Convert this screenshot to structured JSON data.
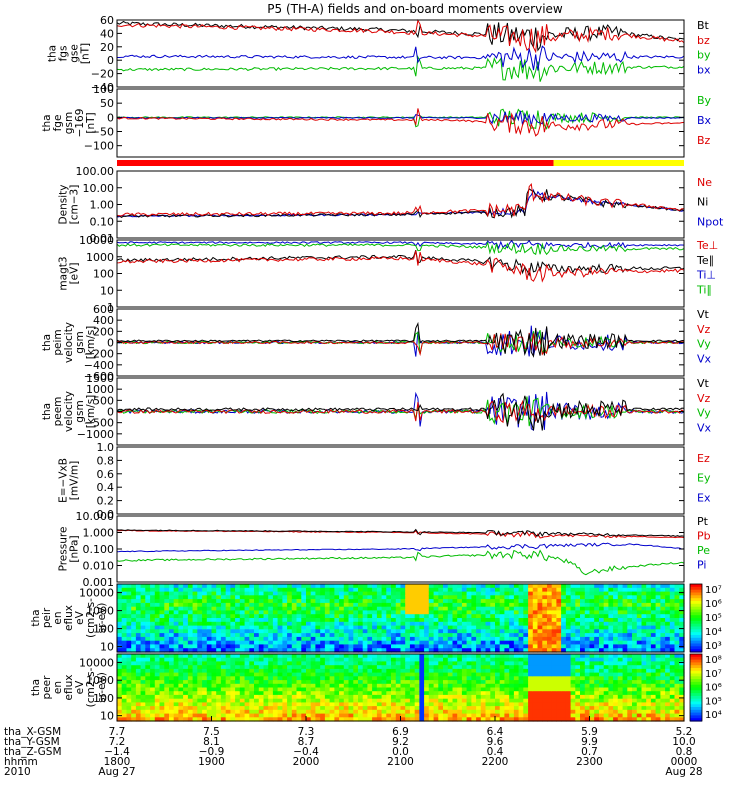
{
  "title": "P5 (TH-A) fields and on-board moments overview",
  "chart_data": [
    {
      "name": "fgs-gse",
      "type": "line",
      "ylabel": [
        "tha",
        "fgs",
        "gse",
        "[nT]"
      ],
      "ylim": [
        -40,
        60
      ],
      "yticks": [
        {
          "v": 60,
          "l": "60"
        },
        {
          "v": 40,
          "l": "40"
        },
        {
          "v": 20,
          "l": "20"
        },
        {
          "v": 0,
          "l": "0"
        },
        {
          "v": -20,
          "l": "−20"
        },
        {
          "v": -40,
          "l": "−40"
        }
      ],
      "legend": [
        {
          "label": "Bt",
          "color": "#000000"
        },
        {
          "label": "bz",
          "color": "#dd0000"
        },
        {
          "label": "by",
          "color": "#00bb00"
        },
        {
          "label": "bx",
          "color": "#0000cc"
        }
      ],
      "series": [
        {
          "name": "Bt",
          "color": "#000000",
          "base": [
            [
              0,
              55
            ],
            [
              0.45,
              46
            ],
            [
              0.73,
              36
            ],
            [
              0.87,
              42
            ],
            [
              1,
              30
            ]
          ],
          "noise": 3,
          "burst": 20
        },
        {
          "name": "bz",
          "color": "#dd0000",
          "base": [
            [
              0,
              53
            ],
            [
              0.45,
              44
            ],
            [
              0.73,
              33
            ],
            [
              0.87,
              40
            ],
            [
              1,
              28
            ]
          ],
          "noise": 3,
          "burst": 18
        },
        {
          "name": "by",
          "color": "#00bb00",
          "base": [
            [
              0,
              -14
            ],
            [
              0.6,
              -12
            ],
            [
              1,
              -10
            ]
          ],
          "noise": 2,
          "burst": 20
        },
        {
          "name": "bx",
          "color": "#0000cc",
          "base": [
            [
              0,
              6
            ],
            [
              0.6,
              4
            ],
            [
              1,
              5
            ]
          ],
          "noise": 2,
          "burst": 18
        }
      ]
    },
    {
      "name": "fge-gsm",
      "type": "line",
      "ylabel": [
        "tha",
        "fge",
        "gsm",
        "−169",
        "[nT]"
      ],
      "ylim": [
        -140,
        100
      ],
      "yticks": [
        {
          "v": 100,
          "l": "100"
        },
        {
          "v": 50,
          "l": "50"
        },
        {
          "v": 0,
          "l": "0"
        },
        {
          "v": -50,
          "l": "−50"
        },
        {
          "v": -100,
          "l": "−100"
        }
      ],
      "legend": [
        {
          "label": "By",
          "color": "#00bb00"
        },
        {
          "label": "Bx",
          "color": "#0000cc"
        },
        {
          "label": "Bz",
          "color": "#dd0000"
        }
      ],
      "series": [
        {
          "name": "By",
          "color": "#00bb00",
          "base": [
            [
              0,
              0
            ],
            [
              1,
              0
            ]
          ],
          "noise": 2,
          "burst": 40
        },
        {
          "name": "Bx",
          "color": "#0000cc",
          "base": [
            [
              0,
              -2
            ],
            [
              1,
              -2
            ]
          ],
          "noise": 2,
          "burst": 30
        },
        {
          "name": "Bz",
          "color": "#dd0000",
          "base": [
            [
              0,
              -3
            ],
            [
              0.6,
              -10
            ],
            [
              0.75,
              -30
            ],
            [
              1,
              -20
            ]
          ],
          "noise": 3,
          "burst": 40
        }
      ]
    },
    {
      "name": "density",
      "type": "line",
      "log": true,
      "ylabel": [
        "Density",
        "[cm−3]"
      ],
      "ylim": [
        0.01,
        100
      ],
      "yticks": [
        {
          "v": 100,
          "l": "100.00"
        },
        {
          "v": 10,
          "l": "10.00"
        },
        {
          "v": 1,
          "l": "1.00"
        },
        {
          "v": 0.1,
          "l": "0.10"
        },
        {
          "v": 0.01,
          "l": "0.01"
        }
      ],
      "legend": [
        {
          "label": "Ne",
          "color": "#dd0000"
        },
        {
          "label": "Ni",
          "color": "#000000"
        },
        {
          "label": "Npot",
          "color": "#0000cc"
        }
      ],
      "series": [
        {
          "name": "Npot",
          "color": "#0000cc",
          "base": [
            [
              0,
              0.2
            ],
            [
              0.5,
              0.25
            ],
            [
              0.72,
              0.4
            ],
            [
              0.73,
              5
            ],
            [
              0.76,
              3
            ],
            [
              0.85,
              1.2
            ],
            [
              1,
              0.4
            ]
          ],
          "noise": 0.1,
          "burst": 0.4
        },
        {
          "name": "Ni",
          "color": "#000000",
          "base": [
            [
              0,
              0.2
            ],
            [
              0.5,
              0.25
            ],
            [
              0.72,
              0.4
            ],
            [
              0.73,
              5
            ],
            [
              0.76,
              3
            ],
            [
              0.85,
              1.2
            ],
            [
              1,
              0.4
            ]
          ],
          "noise": 0.15,
          "burst": 0.7
        },
        {
          "name": "Ne",
          "color": "#dd0000",
          "base": [
            [
              0,
              0.25
            ],
            [
              0.5,
              0.3
            ],
            [
              0.72,
              0.5
            ],
            [
              0.73,
              6
            ],
            [
              0.76,
              3
            ],
            [
              0.85,
              1.3
            ],
            [
              1,
              0.45
            ]
          ],
          "noise": 0.2,
          "burst": 0.9
        }
      ]
    },
    {
      "name": "temperature",
      "type": "line",
      "log": true,
      "ylabel": [
        "magt3",
        "[eV]"
      ],
      "ylim": [
        1,
        10000
      ],
      "yticks": [
        {
          "v": 10000,
          "l": "10000"
        },
        {
          "v": 1000,
          "l": "1000"
        },
        {
          "v": 100,
          "l": "100"
        },
        {
          "v": 10,
          "l": "10"
        },
        {
          "v": 1,
          "l": "1"
        }
      ],
      "legend": [
        {
          "label": "Te⊥",
          "color": "#dd0000"
        },
        {
          "label": "Te∥",
          "color": "#000000"
        },
        {
          "label": "Ti⊥",
          "color": "#0000cc"
        },
        {
          "label": "Ti∥",
          "color": "#00bb00"
        }
      ],
      "series": [
        {
          "name": "Ti⊥",
          "color": "#0000cc",
          "base": [
            [
              0,
              7000
            ],
            [
              0.5,
              7000
            ],
            [
              0.73,
              5000
            ],
            [
              1,
              5000
            ]
          ],
          "noise": 0.1,
          "burst": 0.5
        },
        {
          "name": "Ti∥",
          "color": "#00bb00",
          "base": [
            [
              0,
              5000
            ],
            [
              0.5,
              5000
            ],
            [
              0.73,
              3000
            ],
            [
              1,
              3000
            ]
          ],
          "noise": 0.15,
          "burst": 0.6
        },
        {
          "name": "Te∥",
          "color": "#000000",
          "base": [
            [
              0,
              600
            ],
            [
              0.5,
              1000
            ],
            [
              0.73,
              200
            ],
            [
              1,
              200
            ]
          ],
          "noise": 0.2,
          "burst": 0.8
        },
        {
          "name": "Te⊥",
          "color": "#dd0000",
          "base": [
            [
              0,
              500
            ],
            [
              0.5,
              800
            ],
            [
              0.73,
              100
            ],
            [
              1,
              150
            ]
          ],
          "noise": 0.2,
          "burst": 0.9
        }
      ]
    },
    {
      "name": "peim-velocity",
      "type": "line",
      "ylabel": [
        "tha",
        "peim",
        "velocity",
        "gsm",
        "[km/s]"
      ],
      "ylim": [
        -600,
        600
      ],
      "yticks": [
        {
          "v": 600,
          "l": "600"
        },
        {
          "v": 400,
          "l": "400"
        },
        {
          "v": 200,
          "l": "200"
        },
        {
          "v": 0,
          "l": "0"
        },
        {
          "v": -200,
          "l": "−200"
        },
        {
          "v": -400,
          "l": "−400"
        },
        {
          "v": -600,
          "l": "−600"
        }
      ],
      "legend": [
        {
          "label": "Vt",
          "color": "#000000"
        },
        {
          "label": "Vz",
          "color": "#dd0000"
        },
        {
          "label": "Vy",
          "color": "#00bb00"
        },
        {
          "label": "Vx",
          "color": "#0000cc"
        }
      ],
      "series": [
        {
          "name": "Vx",
          "color": "#0000cc",
          "base": [
            [
              0,
              0
            ],
            [
              1,
              0
            ]
          ],
          "noise": 20,
          "burst": 300
        },
        {
          "name": "Vy",
          "color": "#00bb00",
          "base": [
            [
              0,
              0
            ],
            [
              1,
              0
            ]
          ],
          "noise": 20,
          "burst": 200
        },
        {
          "name": "Vz",
          "color": "#dd0000",
          "base": [
            [
              0,
              0
            ],
            [
              1,
              0
            ]
          ],
          "noise": 20,
          "burst": 200
        },
        {
          "name": "Vt",
          "color": "#000000",
          "base": [
            [
              0,
              30
            ],
            [
              1,
              30
            ]
          ],
          "noise": 15,
          "burst": 300
        }
      ]
    },
    {
      "name": "peem-velocity",
      "type": "line",
      "ylabel": [
        "tha",
        "peem",
        "velocity",
        "gsm",
        "[km/s]"
      ],
      "ylim": [
        -1500,
        1500
      ],
      "yticks": [
        {
          "v": 1500,
          "l": "1500"
        },
        {
          "v": 1000,
          "l": "1000"
        },
        {
          "v": 500,
          "l": "500"
        },
        {
          "v": 0,
          "l": "0"
        },
        {
          "v": -500,
          "l": "−500"
        },
        {
          "v": -1000,
          "l": "−1000"
        }
      ],
      "legend": [
        {
          "label": "Vt",
          "color": "#000000"
        },
        {
          "label": "Vz",
          "color": "#dd0000"
        },
        {
          "label": "Vy",
          "color": "#00bb00"
        },
        {
          "label": "Vx",
          "color": "#0000cc"
        }
      ],
      "series": [
        {
          "name": "Vx",
          "color": "#0000cc",
          "base": [
            [
              0,
              0
            ],
            [
              1,
              0
            ]
          ],
          "noise": 80,
          "burst": 800
        },
        {
          "name": "Vy",
          "color": "#00bb00",
          "base": [
            [
              0,
              0
            ],
            [
              1,
              0
            ]
          ],
          "noise": 80,
          "burst": 600
        },
        {
          "name": "Vz",
          "color": "#dd0000",
          "base": [
            [
              0,
              0
            ],
            [
              1,
              0
            ]
          ],
          "noise": 80,
          "burst": 500
        },
        {
          "name": "Vt",
          "color": "#000000",
          "base": [
            [
              0,
              100
            ],
            [
              1,
              100
            ]
          ],
          "noise": 60,
          "burst": 900
        }
      ]
    },
    {
      "name": "efield",
      "type": "line",
      "ylabel": [
        "E=−VxB",
        "[mV/m]"
      ],
      "ylim": [
        0,
        1
      ],
      "yticks": [
        {
          "v": 1,
          "l": "1.0"
        },
        {
          "v": 0.8,
          "l": "0.8"
        },
        {
          "v": 0.6,
          "l": "0.6"
        },
        {
          "v": 0.4,
          "l": "0.4"
        },
        {
          "v": 0.2,
          "l": "0.2"
        },
        {
          "v": 0,
          "l": "0.0"
        }
      ],
      "legend": [
        {
          "label": "Ez",
          "color": "#dd0000"
        },
        {
          "label": "Ey",
          "color": "#00bb00"
        },
        {
          "label": "Ex",
          "color": "#0000cc"
        }
      ],
      "series": []
    },
    {
      "name": "pressure",
      "type": "line",
      "log": true,
      "ylabel": [
        "Pressure",
        "[nPa]"
      ],
      "ylim": [
        0.001,
        10
      ],
      "yticks": [
        {
          "v": 10,
          "l": "10.000"
        },
        {
          "v": 1,
          "l": "1.000"
        },
        {
          "v": 0.1,
          "l": "0.100"
        },
        {
          "v": 0.01,
          "l": "0.010"
        },
        {
          "v": 0.001,
          "l": "0.001"
        }
      ],
      "legend": [
        {
          "label": "Pt",
          "color": "#000000"
        },
        {
          "label": "Pb",
          "color": "#dd0000"
        },
        {
          "label": "Pe",
          "color": "#00bb00"
        },
        {
          "label": "Pi",
          "color": "#0000cc"
        }
      ],
      "series": [
        {
          "name": "Pi",
          "color": "#0000cc",
          "base": [
            [
              0,
              0.07
            ],
            [
              0.5,
              0.1
            ],
            [
              0.73,
              0.15
            ],
            [
              0.9,
              0.2
            ],
            [
              1,
              0.1
            ]
          ],
          "noise": 0.05,
          "burst": 0.3
        },
        {
          "name": "Pe",
          "color": "#00bb00",
          "base": [
            [
              0,
              0.02
            ],
            [
              0.5,
              0.03
            ],
            [
              0.73,
              0.05
            ],
            [
              0.82,
              0.003
            ],
            [
              0.9,
              0.008
            ],
            [
              1,
              0.015
            ]
          ],
          "noise": 0.1,
          "burst": 0.5
        },
        {
          "name": "Pb",
          "color": "#dd0000",
          "base": [
            [
              0,
              1.3
            ],
            [
              0.5,
              1.0
            ],
            [
              0.73,
              0.7
            ],
            [
              1,
              0.5
            ]
          ],
          "noise": 0.05,
          "burst": 0.3
        },
        {
          "name": "Pt",
          "color": "#000000",
          "base": [
            [
              0,
              1.4
            ],
            [
              0.5,
              1.1
            ],
            [
              0.73,
              0.9
            ],
            [
              1,
              0.6
            ]
          ],
          "noise": 0.05,
          "burst": 0.3
        }
      ]
    },
    {
      "name": "peir-efluxes",
      "type": "heatmap",
      "ylabel": [
        "tha",
        "peir",
        "en",
        "eflux",
        "eV",
        "(cm2-s-",
        "sr-eV)"
      ],
      "ylim": [
        5,
        30000
      ],
      "yticks": [
        {
          "v": 10000,
          "l": "10000"
        },
        {
          "v": 1000,
          "l": "1000"
        },
        {
          "v": 100,
          "l": "100"
        },
        {
          "v": 10,
          "l": "10"
        }
      ],
      "colorbar": {
        "ticks": [
          "10⁷",
          "10⁶",
          "10⁵",
          "10⁴",
          "10³"
        ]
      }
    },
    {
      "name": "peer-efluxes",
      "type": "heatmap",
      "ylabel": [
        "tha",
        "peer",
        "en",
        "eflux",
        "eV",
        "(cm2-s-",
        "sr-eV)"
      ],
      "ylim": [
        5,
        30000
      ],
      "yticks": [
        {
          "v": 10000,
          "l": "10000"
        },
        {
          "v": 1000,
          "l": "1000"
        },
        {
          "v": 100,
          "l": "100"
        },
        {
          "v": 10,
          "l": "10"
        }
      ],
      "colorbar": {
        "ticks": [
          "10⁸",
          "10⁷",
          "10⁶",
          "10⁵",
          "10⁴"
        ]
      }
    }
  ],
  "xaxis": {
    "row_labels": [
      "tha_X-GSM",
      "tha_Y-GSM",
      "tha_Z-GSM",
      "hhmm",
      "2010"
    ],
    "ticks": [
      {
        "hhmm": "1800",
        "x": "7.7",
        "y": "7.2",
        "z": "−1.4",
        "date": "Aug 27"
      },
      {
        "hhmm": "1900",
        "x": "7.5",
        "y": "8.1",
        "z": "−0.9",
        "date": ""
      },
      {
        "hhmm": "2000",
        "x": "7.3",
        "y": "8.7",
        "z": "−0.4",
        "date": ""
      },
      {
        "hhmm": "2100",
        "x": "6.9",
        "y": "9.2",
        "z": "0.0",
        "date": ""
      },
      {
        "hhmm": "2200",
        "x": "6.4",
        "y": "9.6",
        "z": "0.4",
        "date": ""
      },
      {
        "hhmm": "2300",
        "x": "5.9",
        "y": "9.9",
        "z": "0.7",
        "date": ""
      },
      {
        "hhmm": "0000",
        "x": "5.2",
        "y": "10.0",
        "z": "0.8",
        "date": "Aug 28"
      }
    ]
  }
}
